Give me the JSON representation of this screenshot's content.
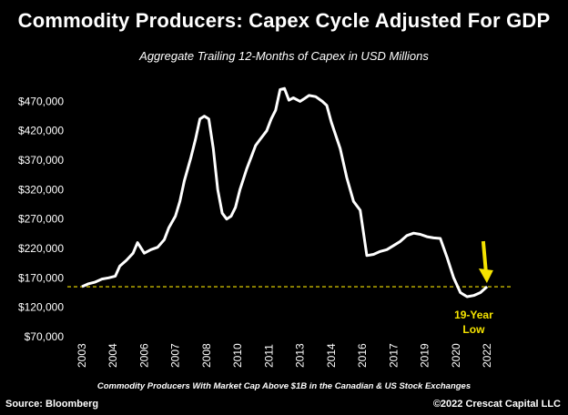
{
  "header": {
    "title": "Commodity Producers: Capex Cycle Adjusted For GDP",
    "subtitle": "Aggregate Trailing 12-Months of Capex in USD Millions"
  },
  "footer": {
    "note": "Commodity Producers With Market Cap Above $1B in the Canadian & US Stock Exchanges",
    "source": "Source: Bloomberg",
    "credit": "©2022 Crescat Capital LLC"
  },
  "colors": {
    "line": "#ffffff",
    "reference": "#f5e300",
    "annotation": "#f5e300",
    "background": "#000000"
  },
  "chart_data": {
    "type": "line",
    "title": "Commodity Producers: Capex Cycle Adjusted For GDP",
    "subtitle": "Aggregate Trailing 12-Months of Capex in USD Millions",
    "xlabel": "",
    "ylabel": "",
    "ylim": [
      70000,
      500000
    ],
    "xlim": [
      2003.0,
      2022.3
    ],
    "y_ticks": [
      "$70,000",
      "$120,000",
      "$170,000",
      "$220,000",
      "$270,000",
      "$320,000",
      "$370,000",
      "$420,000",
      "$470,000"
    ],
    "y_tick_values": [
      70000,
      120000,
      170000,
      220000,
      270000,
      320000,
      370000,
      420000,
      470000
    ],
    "x_ticks": [
      "2003",
      "2004",
      "2006",
      "2007",
      "2008",
      "2010",
      "2011",
      "2013",
      "2014",
      "2016",
      "2017",
      "2019",
      "2020",
      "2022"
    ],
    "x_tick_values": [
      2003.0,
      2004.4,
      2005.8,
      2007.2,
      2008.6,
      2010.0,
      2011.4,
      2012.8,
      2014.2,
      2015.6,
      2017.0,
      2018.4,
      2019.8,
      2021.2
    ],
    "series": [
      {
        "values": [
          [
            2003.0,
            155000
          ],
          [
            2003.3,
            160000
          ],
          [
            2003.6,
            163000
          ],
          [
            2003.9,
            168000
          ],
          [
            2004.2,
            170000
          ],
          [
            2004.5,
            173000
          ],
          [
            2004.7,
            190000
          ],
          [
            2005.0,
            200000
          ],
          [
            2005.3,
            212000
          ],
          [
            2005.5,
            230000
          ],
          [
            2005.8,
            212000
          ],
          [
            2006.1,
            218000
          ],
          [
            2006.4,
            222000
          ],
          [
            2006.7,
            235000
          ],
          [
            2006.9,
            255000
          ],
          [
            2007.2,
            275000
          ],
          [
            2007.4,
            300000
          ],
          [
            2007.6,
            335000
          ],
          [
            2007.9,
            375000
          ],
          [
            2008.1,
            405000
          ],
          [
            2008.3,
            440000
          ],
          [
            2008.5,
            445000
          ],
          [
            2008.7,
            440000
          ],
          [
            2008.9,
            390000
          ],
          [
            2009.1,
            320000
          ],
          [
            2009.3,
            280000
          ],
          [
            2009.5,
            270000
          ],
          [
            2009.7,
            275000
          ],
          [
            2009.9,
            290000
          ],
          [
            2010.1,
            320000
          ],
          [
            2010.4,
            355000
          ],
          [
            2010.6,
            375000
          ],
          [
            2010.8,
            395000
          ],
          [
            2011.0,
            405000
          ],
          [
            2011.3,
            420000
          ],
          [
            2011.5,
            440000
          ],
          [
            2011.7,
            455000
          ],
          [
            2011.9,
            490000
          ],
          [
            2012.1,
            492000
          ],
          [
            2012.3,
            472000
          ],
          [
            2012.5,
            476000
          ],
          [
            2012.8,
            470000
          ],
          [
            2013.0,
            475000
          ],
          [
            2013.2,
            480000
          ],
          [
            2013.5,
            478000
          ],
          [
            2013.8,
            470000
          ],
          [
            2014.0,
            463000
          ],
          [
            2014.2,
            435000
          ],
          [
            2014.6,
            390000
          ],
          [
            2014.9,
            340000
          ],
          [
            2015.2,
            300000
          ],
          [
            2015.5,
            285000
          ],
          [
            2015.8,
            208000
          ],
          [
            2016.1,
            210000
          ],
          [
            2016.4,
            215000
          ],
          [
            2016.7,
            218000
          ],
          [
            2017.0,
            225000
          ],
          [
            2017.3,
            232000
          ],
          [
            2017.6,
            242000
          ],
          [
            2017.9,
            246000
          ],
          [
            2018.2,
            244000
          ],
          [
            2018.5,
            240000
          ],
          [
            2018.8,
            238000
          ],
          [
            2019.1,
            237000
          ],
          [
            2019.4,
            205000
          ],
          [
            2019.7,
            170000
          ],
          [
            2020.0,
            145000
          ],
          [
            2020.3,
            138000
          ],
          [
            2020.6,
            140000
          ],
          [
            2020.9,
            145000
          ],
          [
            2021.2,
            155000
          ]
        ]
      }
    ],
    "reference_line": {
      "y": 155000,
      "style": "dashed"
    },
    "annotations": [
      {
        "text_line1": "19-Year",
        "text_line2": "Low",
        "x": 2020.6,
        "arrow_to": [
          2021.15,
          155000
        ]
      }
    ]
  }
}
